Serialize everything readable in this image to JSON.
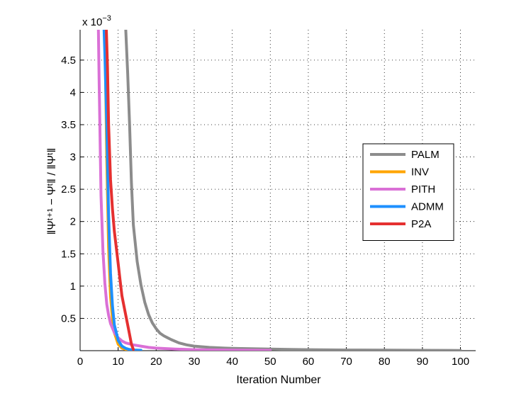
{
  "chart_data": {
    "type": "line",
    "title": "",
    "xlabel": "Iteration Number",
    "ylabel": "||Ψ^{t+1} − Ψ^t|| / ||Ψ^t||",
    "ylabel_display": "‖Ψᵗ⁺¹ − Ψᵗ‖ / ‖Ψᵗ‖",
    "y_exponent_label": "x 10",
    "y_exponent_power": "−3",
    "xlim": [
      0,
      104
    ],
    "ylim": [
      0,
      4.97
    ],
    "xticks": [
      0,
      10,
      20,
      30,
      40,
      50,
      60,
      70,
      80,
      90,
      100
    ],
    "yticks": [
      0.5,
      1,
      1.5,
      2,
      2.5,
      3,
      3.5,
      4,
      4.5
    ],
    "grid": true,
    "legend_position": "right",
    "series": [
      {
        "name": "PALM",
        "color": "#8c8c8c",
        "x": [
          12,
          12.5,
          13,
          13.5,
          14,
          15,
          16,
          17,
          18,
          19,
          20,
          21,
          22,
          23,
          24,
          26,
          28,
          30,
          32,
          34,
          36,
          38,
          40,
          45,
          50,
          55,
          60,
          70,
          80,
          90,
          100
        ],
        "y": [
          4.97,
          4.3,
          3.5,
          2.6,
          1.95,
          1.38,
          1.02,
          0.75,
          0.56,
          0.43,
          0.34,
          0.27,
          0.23,
          0.2,
          0.17,
          0.12,
          0.09,
          0.07,
          0.06,
          0.05,
          0.045,
          0.04,
          0.035,
          0.03,
          0.025,
          0.02,
          0.015,
          0.01,
          0.008,
          0.005,
          0.003
        ]
      },
      {
        "name": "INV",
        "color": "#ffa500",
        "x": [
          6.5,
          7,
          7.5,
          8,
          8.5,
          9,
          10,
          11,
          12,
          14,
          16
        ],
        "y": [
          4.97,
          3.0,
          1.6,
          0.85,
          0.5,
          0.28,
          0.1,
          0.04,
          0.02,
          0.01,
          0.005
        ]
      },
      {
        "name": "PITH",
        "color": "#da70d6",
        "x": [
          4.8,
          5,
          5.5,
          6,
          6.5,
          7,
          7.5,
          8,
          9,
          10,
          11,
          12,
          14,
          16,
          18,
          20,
          25,
          30,
          40,
          50
        ],
        "y": [
          4.97,
          4.2,
          2.4,
          1.55,
          1.05,
          0.72,
          0.55,
          0.42,
          0.28,
          0.2,
          0.15,
          0.12,
          0.09,
          0.07,
          0.05,
          0.04,
          0.025,
          0.015,
          0.008,
          0.004
        ]
      },
      {
        "name": "ADMM",
        "color": "#1e90ff",
        "x": [
          6.3,
          6.5,
          7,
          7.5,
          8,
          8.5,
          9,
          10,
          11,
          12,
          13,
          14,
          16
        ],
        "y": [
          4.97,
          4.6,
          3.5,
          2.1,
          1.2,
          0.7,
          0.4,
          0.16,
          0.07,
          0.035,
          0.018,
          0.01,
          0.005
        ]
      },
      {
        "name": "P2A",
        "color": "#e53030",
        "x": [
          6.9,
          7.2,
          7.5,
          8,
          8.5,
          9,
          9.5,
          10,
          10.5,
          11,
          11.5,
          12,
          12.5,
          13,
          13.5,
          14
        ],
        "y": [
          4.97,
          4.4,
          3.5,
          2.65,
          2.2,
          1.85,
          1.6,
          1.35,
          1.1,
          0.85,
          0.7,
          0.55,
          0.4,
          0.25,
          0.1,
          0.02
        ]
      }
    ]
  }
}
